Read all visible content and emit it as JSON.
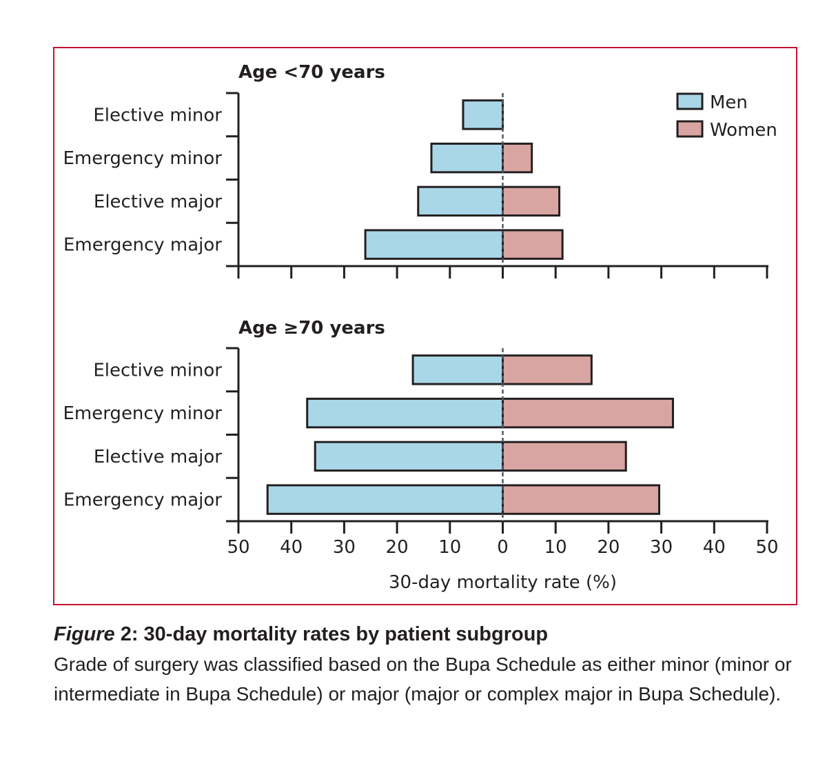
{
  "chart_data": [
    {
      "type": "bar",
      "orientation": "horizontal-diverging",
      "title": "Age <70 years",
      "categories": [
        "Elective minor",
        "Emergency minor",
        "Elective major",
        "Emergency major"
      ],
      "series": [
        {
          "name": "Men",
          "values": [
            7.5,
            13.5,
            16,
            26
          ],
          "color": "#a9d7e8",
          "direction": "left"
        },
        {
          "name": "Women",
          "values": [
            0,
            5.5,
            10.7,
            11.3
          ],
          "color": "#d8a5a2",
          "direction": "right"
        }
      ],
      "xlim": [
        -50,
        50
      ],
      "ticks": [
        50,
        40,
        30,
        20,
        10,
        0,
        10,
        20,
        30,
        40,
        50
      ],
      "show_tick_labels": false,
      "legend": "top-right"
    },
    {
      "type": "bar",
      "orientation": "horizontal-diverging",
      "title": "Age ≥70 years",
      "categories": [
        "Elective minor",
        "Emergency minor",
        "Elective major",
        "Emergency major"
      ],
      "series": [
        {
          "name": "Men",
          "values": [
            17,
            37,
            35.5,
            44.5
          ],
          "color": "#a9d7e8",
          "direction": "left"
        },
        {
          "name": "Women",
          "values": [
            16.8,
            32.2,
            23.3,
            29.6
          ],
          "color": "#d8a5a2",
          "direction": "right"
        }
      ],
      "xlim": [
        -50,
        50
      ],
      "ticks": [
        50,
        40,
        30,
        20,
        10,
        0,
        10,
        20,
        30,
        40,
        50
      ],
      "show_tick_labels": true,
      "xlabel": "30-day mortality rate (%)"
    }
  ],
  "legend": [
    {
      "name": "Men",
      "color": "#a9d7e8"
    },
    {
      "name": "Women",
      "color": "#d8a5a2"
    }
  ],
  "colors": {
    "frame": "#c4122f",
    "axis": "#231f20",
    "zero_line": "#4a5a6a"
  },
  "caption": {
    "label": "Figure",
    "number": "2:",
    "title": "30-day mortality rates by patient subgroup",
    "body": "Grade of surgery was classified based on the Bupa Schedule as either minor (minor or intermediate in Bupa Schedule) or major (major or complex major in Bupa Schedule)."
  }
}
